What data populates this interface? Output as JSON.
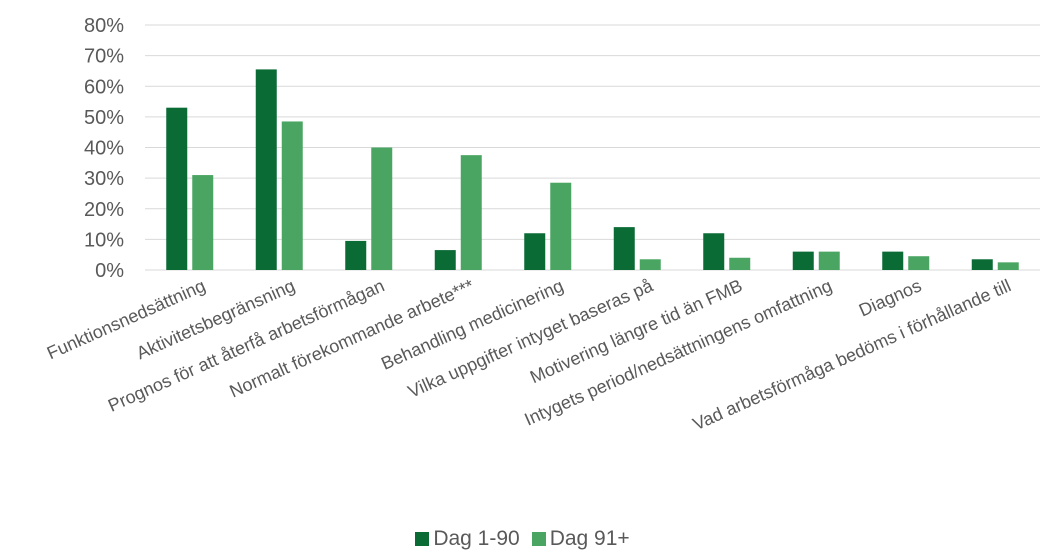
{
  "chart_data": {
    "type": "bar",
    "categories": [
      "Funktionsnedsättning",
      "Aktivitetsbegränsning",
      "Prognos för att återfå arbetsförmågan",
      "Normalt förekommande arbete***",
      "Behandling medicinering",
      "Vilka uppgifter intyget baseras på",
      "Motivering längre tid än FMB",
      "Intygets period/nedsättningens omfattning",
      "Diagnos",
      "Vad arbetsförmåga bedöms i förhållande till"
    ],
    "series": [
      {
        "name": "Dag 1-90",
        "color": "#0a6b35",
        "values": [
          53,
          65.5,
          9.5,
          6.5,
          12,
          14,
          12,
          6,
          6,
          3.5
        ]
      },
      {
        "name": "Dag 91+",
        "color": "#4aa562",
        "values": [
          31,
          48.5,
          40,
          37.5,
          28.5,
          3.5,
          4,
          6,
          4.5,
          2.5
        ]
      }
    ],
    "ylim": [
      0,
      80
    ],
    "yticks": [
      "0%",
      "10%",
      "20%",
      "30%",
      "40%",
      "50%",
      "60%",
      "70%",
      "80%"
    ],
    "grid": true,
    "legend_position": "bottom"
  }
}
